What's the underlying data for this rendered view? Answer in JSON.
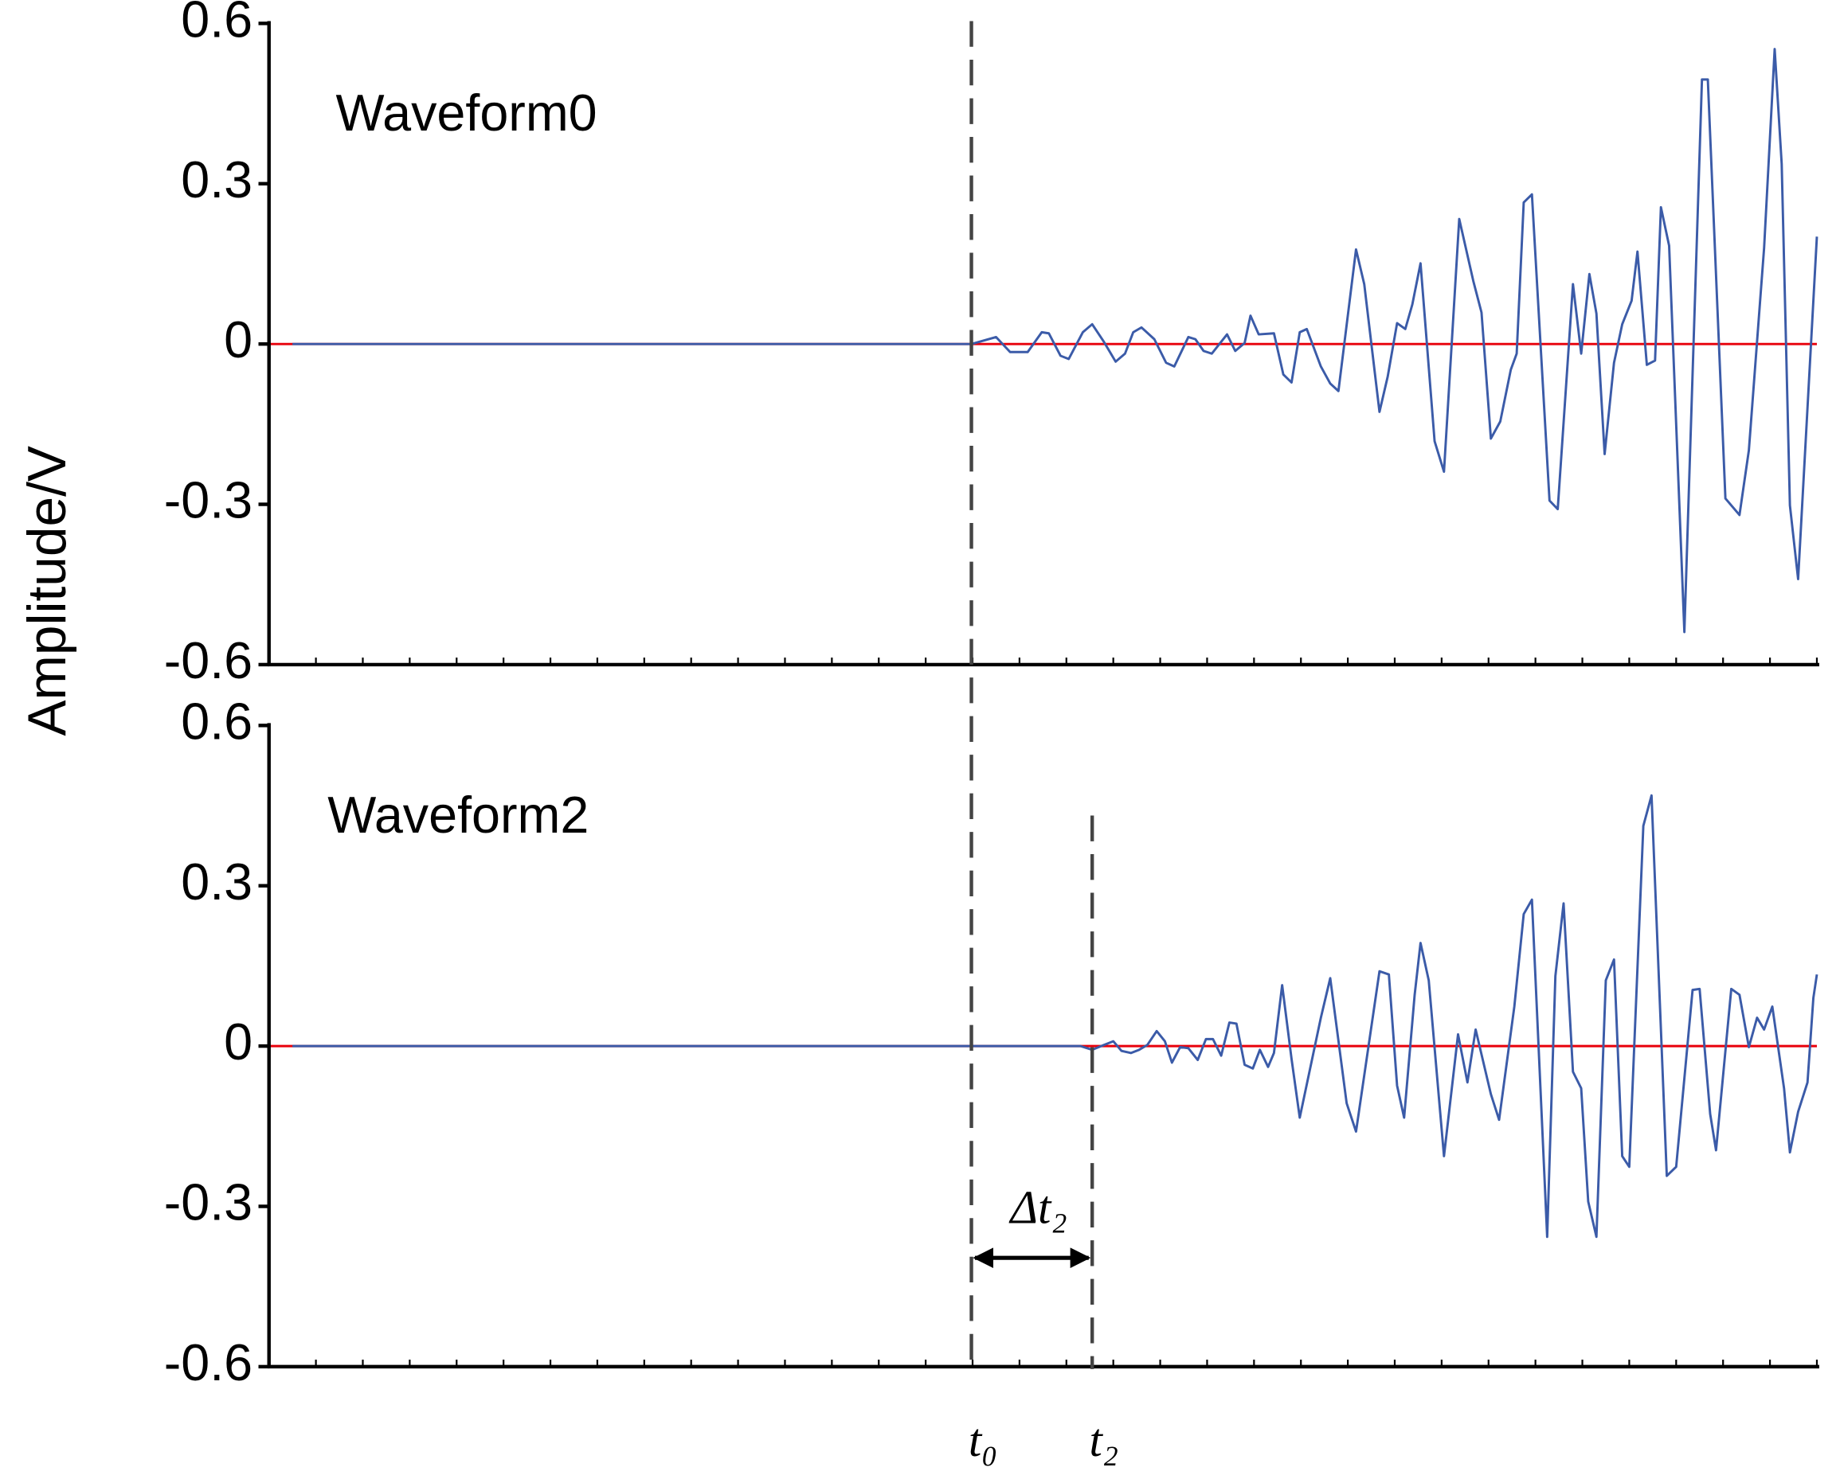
{
  "y_label": "Amplitude/V",
  "chart_data": [
    {
      "type": "line",
      "annotation": "Waveform0",
      "xlim": [
        0,
        132
      ],
      "xticks": [
        0,
        4,
        8,
        12,
        16,
        20,
        24,
        28,
        32,
        36,
        40,
        44,
        48,
        52,
        56,
        60,
        64,
        68,
        72,
        76,
        80,
        84,
        88,
        92,
        96,
        100,
        104,
        108,
        112,
        116,
        120,
        124,
        128,
        132
      ],
      "ylim": [
        -0.6,
        0.6
      ],
      "yticks": [
        -0.6,
        -0.3,
        0,
        0.3,
        0.6
      ],
      "reference_line": {
        "value": 0,
        "color": "#e8000b"
      },
      "series": [
        {
          "color": "#3b5ba8",
          "x": [
            2,
            59.9,
            62,
            63.2,
            64.7,
            65.9,
            66.5,
            67.5,
            68.2,
            69.4,
            70.2,
            71.2,
            72.2,
            73,
            73.7,
            74.4,
            75.5,
            76.5,
            77.2,
            78.4,
            79,
            79.7,
            80.4,
            81.7,
            82.4,
            83.2,
            83.7,
            84.4,
            85.7,
            86.5,
            87.2,
            87.9,
            88.5,
            89.7,
            90.5,
            91.2,
            92.7,
            93.4,
            94.7,
            95.4,
            96.2,
            96.9,
            97.5,
            98.2,
            99.4,
            100.2,
            101.5,
            102.7,
            103.4,
            104.2,
            105,
            105.9,
            106.4,
            107,
            107.7,
            109.2,
            109.9,
            111.2,
            111.9,
            112.6,
            113.2,
            113.9,
            114.7,
            115.4,
            116.2,
            116.7,
            117.5,
            118.2,
            118.7,
            119.4,
            120.7,
            122.2,
            122.7,
            124.2,
            125.4,
            126.2,
            127.5,
            128.4,
            129,
            129.7,
            130.4,
            132
          ],
          "values": [
            0,
            0,
            0.013,
            -0.015,
            -0.015,
            0.022,
            0.02,
            -0.022,
            -0.028,
            0.022,
            0.037,
            0.004,
            -0.033,
            -0.018,
            0.022,
            0.031,
            0.009,
            -0.035,
            -0.042,
            0.013,
            0.009,
            -0.013,
            -0.018,
            0.018,
            -0.013,
            0.002,
            0.053,
            0.018,
            0.02,
            -0.057,
            -0.072,
            0.022,
            0.028,
            -0.042,
            -0.074,
            -0.088,
            0.177,
            0.112,
            -0.127,
            -0.061,
            0.039,
            0.028,
            0.074,
            0.151,
            -0.182,
            -0.239,
            0.234,
            0.118,
            0.059,
            -0.177,
            -0.145,
            -0.048,
            -0.018,
            0.265,
            0.28,
            -0.293,
            -0.309,
            0.112,
            -0.018,
            0.131,
            0.057,
            -0.206,
            -0.035,
            0.037,
            0.081,
            0.173,
            -0.039,
            -0.031,
            0.256,
            0.184,
            -0.539,
            0.495,
            0.495,
            -0.289,
            -0.32,
            -0.199,
            0.18,
            0.552,
            0.337,
            -0.302,
            -0.44,
            0.201
          ]
        }
      ]
    },
    {
      "type": "line",
      "annotation": "Waveform2",
      "xlim": [
        0,
        132
      ],
      "xticks": [
        0,
        4,
        8,
        12,
        16,
        20,
        24,
        28,
        32,
        36,
        40,
        44,
        48,
        52,
        56,
        60,
        64,
        68,
        72,
        76,
        80,
        84,
        88,
        92,
        96,
        100,
        104,
        108,
        112,
        116,
        120,
        124,
        128,
        132
      ],
      "ylim": [
        -0.6,
        0.6
      ],
      "yticks": [
        -0.6,
        -0.3,
        0,
        0.3,
        0.6
      ],
      "reference_line": {
        "value": 0,
        "color": "#e8000b"
      },
      "series": [
        {
          "color": "#3b5ba8",
          "x": [
            2,
            69.2,
            70.2,
            71.2,
            72,
            72.7,
            73.5,
            74.2,
            74.9,
            75.7,
            76.4,
            77,
            77.7,
            78.4,
            79.2,
            79.9,
            80.5,
            81.2,
            81.9,
            82.5,
            83.2,
            83.9,
            84.5,
            85.2,
            85.7,
            86.4,
            87.2,
            87.9,
            89.7,
            90.5,
            91.9,
            92.7,
            94.7,
            95.5,
            96.2,
            96.8,
            97.7,
            98.2,
            98.9,
            100.2,
            101.4,
            102.2,
            102.9,
            104.2,
            104.9,
            106.2,
            107,
            107.7,
            109,
            109.7,
            110.4,
            111.2,
            111.9,
            112.5,
            113.2,
            114,
            114.7,
            115.4,
            116,
            117.2,
            117.9,
            119.2,
            120,
            121.4,
            122,
            122.9,
            123.4,
            124.7,
            125.4,
            126.2,
            126.9,
            127.5,
            128.2,
            129.2,
            129.7,
            130.4,
            131.2,
            131.7,
            132
          ],
          "values": [
            0,
            0,
            -0.007,
            0.002,
            0.009,
            -0.009,
            -0.013,
            -0.007,
            0.002,
            0.028,
            0.009,
            -0.031,
            -0.002,
            -0.004,
            -0.026,
            0.013,
            0.013,
            -0.018,
            0.044,
            0.042,
            -0.035,
            -0.042,
            -0.007,
            -0.039,
            -0.013,
            0.114,
            -0.024,
            -0.134,
            0.053,
            0.127,
            -0.107,
            -0.16,
            0.14,
            0.134,
            -0.074,
            -0.134,
            0.096,
            0.193,
            0.123,
            -0.206,
            0.022,
            -0.068,
            0.031,
            -0.09,
            -0.138,
            0.074,
            0.247,
            0.274,
            -0.357,
            0.131,
            0.267,
            -0.048,
            -0.079,
            -0.291,
            -0.357,
            0.123,
            0.162,
            -0.206,
            -0.226,
            0.412,
            0.469,
            -0.243,
            -0.226,
            0.105,
            0.107,
            -0.127,
            -0.195,
            0.107,
            0.096,
            -0.002,
            0.053,
            0.031,
            0.074,
            -0.079,
            -0.199,
            -0.123,
            -0.068,
            0.09,
            0.134
          ]
        }
      ]
    }
  ],
  "markers": [
    {
      "x": 59.9,
      "label": "t₀"
    },
    {
      "x": 70.2,
      "label": "t₂"
    }
  ],
  "interval": {
    "label": "Δt₂"
  }
}
